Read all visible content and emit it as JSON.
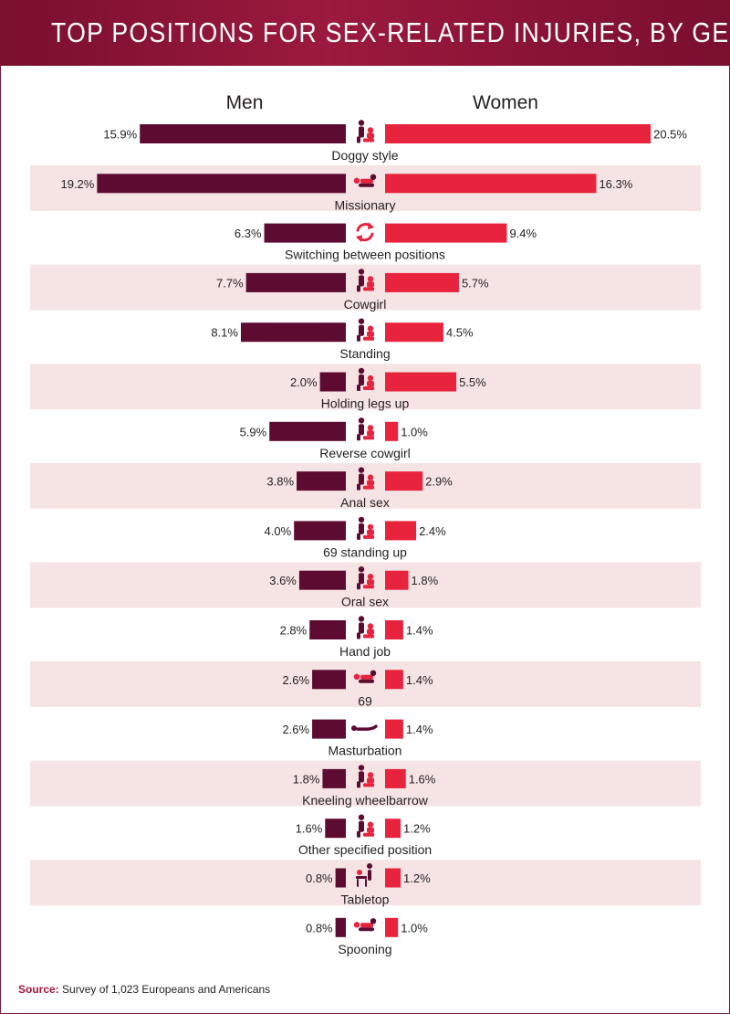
{
  "title": "TOP POSITIONS FOR SEX-RELATED INJURIES, BY GENDER",
  "source_label": "Source:",
  "source_text": "Survey of 1,023 Europeans and Americans",
  "colors": {
    "header": "#8c1436",
    "men": "#5e0b32",
    "women": "#e8233d",
    "row_band": "#f6e4e4",
    "icon_dark": "#5e0b32",
    "icon_red": "#e8233d"
  },
  "chart_data": {
    "type": "bar",
    "orientation": "horizontal-diverging",
    "unit": "%",
    "series": [
      {
        "name": "Men",
        "color": "#5e0b32",
        "values": [
          15.9,
          19.2,
          6.3,
          7.7,
          8.1,
          2.0,
          5.9,
          3.8,
          4.0,
          3.6,
          2.8,
          2.6,
          2.6,
          1.8,
          1.6,
          0.8,
          0.8
        ],
        "labels": [
          "15.9%",
          "19.2%",
          "6.3%",
          "7.7%",
          "8.1%",
          "2.0%",
          "5.9%",
          "3.8%",
          "4.0%",
          "3.6%",
          "2.8%",
          "2.6%",
          "2.6%",
          "1.8%",
          "1.6%",
          "0.8%",
          "0.8%"
        ]
      },
      {
        "name": "Women",
        "color": "#e8233d",
        "values": [
          20.5,
          16.3,
          9.4,
          5.7,
          4.5,
          5.5,
          1.0,
          2.9,
          2.4,
          1.8,
          1.4,
          1.4,
          1.4,
          1.6,
          1.2,
          1.2,
          1.0
        ],
        "labels": [
          "20.5%",
          "16.3%",
          "9.4%",
          "5.7%",
          "4.5%",
          "5.5%",
          "1.0%",
          "2.9%",
          "2.4%",
          "1.8%",
          "1.4%",
          "1.4%",
          "1.4%",
          "1.6%",
          "1.2%",
          "1.2%",
          "1.0%"
        ]
      }
    ],
    "categories": [
      "Doggy style",
      "Missionary",
      "Switching between positions",
      "Cowgirl",
      "Standing",
      "Holding legs up",
      "Reverse cowgirl",
      "Anal sex",
      "69 standing up",
      "Oral sex",
      "Hand job",
      "69",
      "Masturbation",
      "Kneeling wheelbarrow",
      "Other specified position",
      "Tabletop",
      "Spooning"
    ],
    "icons": [
      "doggy-style-icon",
      "missionary-icon",
      "switch-arrows-icon",
      "cowgirl-icon",
      "standing-icon",
      "holding-legs-up-icon",
      "reverse-cowgirl-icon",
      "anal-sex-icon",
      "69-standing-icon",
      "oral-sex-icon",
      "hand-job-icon",
      "69-icon",
      "masturbation-icon",
      "kneeling-wheelbarrow-icon",
      "other-position-icon",
      "tabletop-icon",
      "spooning-icon"
    ],
    "grid": false,
    "legend": "column-headers-top"
  }
}
